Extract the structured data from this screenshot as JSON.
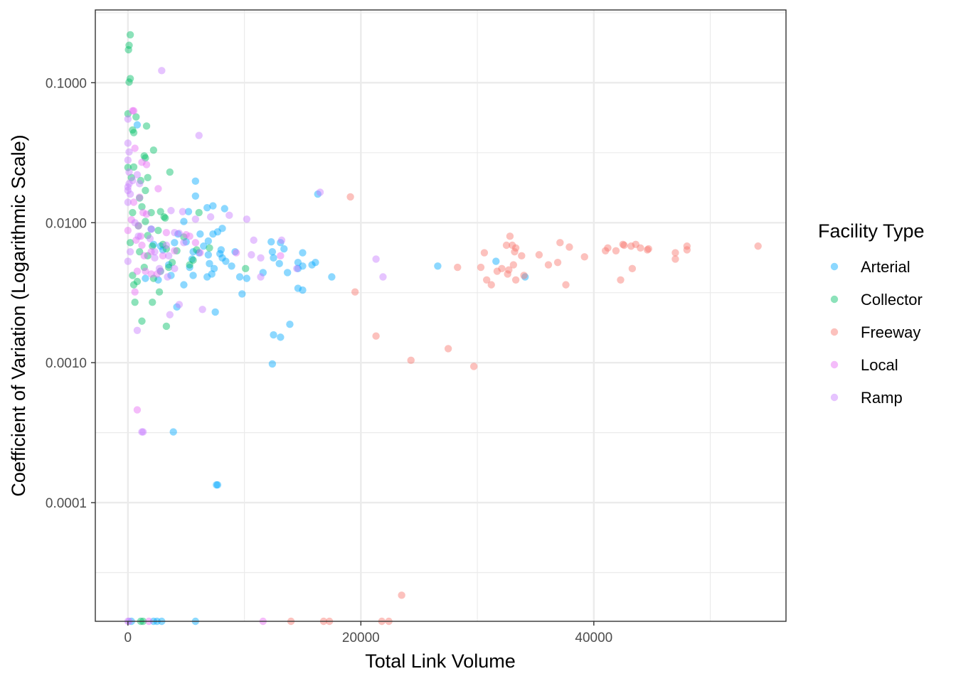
{
  "chart_data": {
    "type": "scatter",
    "xlabel": "Total Link Volume",
    "ylabel": "Coefficient of Variation (Logarithmic Scale)",
    "x_scale": "linear",
    "y_scale": "log10",
    "xlim": [
      -2800,
      56500
    ],
    "ylim": [
      1.42e-05,
      0.331
    ],
    "x_ticks": [
      0,
      20000,
      40000
    ],
    "x_tick_labels": [
      "0",
      "20000",
      "40000"
    ],
    "y_ticks": [
      0.0001,
      0.001,
      0.01,
      0.1
    ],
    "y_tick_labels": [
      "0.0001",
      "0.0010",
      "0.0100",
      "0.1000"
    ],
    "grid": true,
    "legend_title": "Facility Type",
    "legend_position": "right",
    "series": [
      {
        "name": "Arterial",
        "color": "#00A9FF",
        "points": [
          [
            800,
            0.05
          ],
          [
            5800,
            0.0198
          ],
          [
            5800,
            0.0155
          ],
          [
            6800,
            0.0128
          ],
          [
            7300,
            0.0132
          ],
          [
            7700,
            0.0086
          ],
          [
            8300,
            0.0126
          ],
          [
            8100,
            0.0091
          ],
          [
            4800,
            0.0102
          ],
          [
            5200,
            0.012
          ],
          [
            4300,
            0.0083
          ],
          [
            5000,
            0.0073
          ],
          [
            6200,
            0.0083
          ],
          [
            6900,
            0.0074
          ],
          [
            7900,
            0.006
          ],
          [
            7300,
            0.0083
          ],
          [
            6100,
            0.0061
          ],
          [
            5600,
            0.0062
          ],
          [
            5500,
            0.0055
          ],
          [
            6900,
            0.0059
          ],
          [
            7000,
            0.0051
          ],
          [
            7400,
            0.0047
          ],
          [
            7200,
            0.0043
          ],
          [
            6800,
            0.0041
          ],
          [
            5600,
            0.0042
          ],
          [
            5300,
            0.0048
          ],
          [
            4800,
            0.0036
          ],
          [
            4200,
            0.0025
          ],
          [
            3700,
            0.0042
          ],
          [
            3500,
            0.005
          ],
          [
            3000,
            0.0064
          ],
          [
            2800,
            0.0068
          ],
          [
            2600,
            0.0039
          ],
          [
            2200,
            0.007
          ],
          [
            8900,
            0.0049
          ],
          [
            8400,
            0.0053
          ],
          [
            9200,
            0.0062
          ],
          [
            9800,
            0.0031
          ],
          [
            10200,
            0.004
          ],
          [
            7500,
            0.0023
          ],
          [
            12300,
            0.0073
          ],
          [
            12500,
            0.0056
          ],
          [
            12400,
            0.0062
          ],
          [
            13100,
            0.0072
          ],
          [
            13000,
            0.0051
          ],
          [
            13400,
            0.0065
          ],
          [
            13700,
            0.0044
          ],
          [
            14600,
            0.0047
          ],
          [
            14600,
            0.0052
          ],
          [
            14600,
            0.0034
          ],
          [
            15000,
            0.0061
          ],
          [
            15000,
            0.0049
          ],
          [
            15000,
            0.0033
          ],
          [
            15800,
            0.005
          ],
          [
            16100,
            0.0052
          ],
          [
            16300,
            0.016
          ],
          [
            17500,
            0.0041
          ],
          [
            12500,
            0.00158
          ],
          [
            13100,
            0.00152
          ],
          [
            13900,
            0.00188
          ],
          [
            12400,
            0.00098
          ],
          [
            26600,
            0.0049
          ],
          [
            31600,
            0.0053
          ],
          [
            34100,
            0.0041
          ],
          [
            3900,
            0.00032
          ],
          [
            7600,
            0.000134
          ],
          [
            7700,
            0.000134
          ],
          [
            5800,
            1.42e-05
          ],
          [
            2200,
            1.42e-05
          ],
          [
            2500,
            1.42e-05
          ],
          [
            2900,
            1.42e-05
          ],
          [
            300,
            1.42e-05
          ],
          [
            8100,
            0.0056
          ],
          [
            8000,
            0.0064
          ],
          [
            4000,
            0.0072
          ],
          [
            2000,
            0.009
          ],
          [
            1500,
            0.004
          ],
          [
            6500,
            0.0068
          ],
          [
            9600,
            0.0041
          ],
          [
            11600,
            0.0044
          ]
        ]
      },
      {
        "name": "Collector",
        "color": "#00BE67",
        "points": [
          [
            200,
            0.22
          ],
          [
            100,
            0.185
          ],
          [
            50,
            0.172
          ],
          [
            200,
            0.107
          ],
          [
            100,
            0.101
          ],
          [
            0,
            0.06
          ],
          [
            400,
            0.046
          ],
          [
            500,
            0.044
          ],
          [
            700,
            0.057
          ],
          [
            1600,
            0.049
          ],
          [
            1400,
            0.03
          ],
          [
            1500,
            0.029
          ],
          [
            2200,
            0.033
          ],
          [
            3600,
            0.023
          ],
          [
            1100,
            0.02
          ],
          [
            1500,
            0.017
          ],
          [
            1700,
            0.021
          ],
          [
            2800,
            0.012
          ],
          [
            3100,
            0.011
          ],
          [
            3200,
            0.0108
          ],
          [
            2000,
            0.0118
          ],
          [
            1200,
            0.013
          ],
          [
            1000,
            0.015
          ],
          [
            400,
            0.0118
          ],
          [
            900,
            0.0095
          ],
          [
            1500,
            0.0102
          ],
          [
            1700,
            0.0081
          ],
          [
            2600,
            0.0088
          ],
          [
            2100,
            0.0068
          ],
          [
            3300,
            0.0065
          ],
          [
            4200,
            0.0063
          ],
          [
            3000,
            0.007
          ],
          [
            2800,
            0.0045
          ],
          [
            3500,
            0.0048
          ],
          [
            2200,
            0.004
          ],
          [
            1400,
            0.0048
          ],
          [
            800,
            0.0038
          ],
          [
            400,
            0.0042
          ],
          [
            500,
            0.0036
          ],
          [
            600,
            0.0027
          ],
          [
            2100,
            0.0027
          ],
          [
            3300,
            0.00182
          ],
          [
            1200,
            0.00198
          ],
          [
            5900,
            0.0064
          ],
          [
            6100,
            0.0118
          ],
          [
            7000,
            0.0066
          ],
          [
            10100,
            0.0047
          ],
          [
            5300,
            0.005
          ],
          [
            300,
            0.021
          ],
          [
            500,
            0.025
          ],
          [
            0,
            0.0248
          ],
          [
            1000,
            0.0062
          ],
          [
            4800,
            0.0079
          ],
          [
            5600,
            0.0054
          ],
          [
            2700,
            0.0032
          ],
          [
            1700,
            0.0058
          ],
          [
            200,
            0.0072
          ],
          [
            1100,
            1.42e-05
          ],
          [
            1300,
            1.42e-05
          ],
          [
            3800,
            0.0052
          ]
        ]
      },
      {
        "name": "Freeway",
        "color": "#F8766D",
        "points": [
          [
            19100,
            0.0153
          ],
          [
            33000,
            0.0069
          ],
          [
            32800,
            0.008
          ],
          [
            32500,
            0.0069
          ],
          [
            33200,
            0.0062
          ],
          [
            33300,
            0.0066
          ],
          [
            33800,
            0.0058
          ],
          [
            30600,
            0.0061
          ],
          [
            31700,
            0.0045
          ],
          [
            30300,
            0.0048
          ],
          [
            28300,
            0.0048
          ],
          [
            32600,
            0.0043
          ],
          [
            33100,
            0.005
          ],
          [
            33300,
            0.0039
          ],
          [
            34000,
            0.0042
          ],
          [
            35300,
            0.0059
          ],
          [
            36100,
            0.005
          ],
          [
            37100,
            0.0072
          ],
          [
            36900,
            0.0052
          ],
          [
            37600,
            0.0036
          ],
          [
            37900,
            0.0067
          ],
          [
            39200,
            0.0057
          ],
          [
            41000,
            0.0063
          ],
          [
            41200,
            0.0066
          ],
          [
            41900,
            0.0063
          ],
          [
            42300,
            0.0039
          ],
          [
            42500,
            0.007
          ],
          [
            43300,
            0.0047
          ],
          [
            44000,
            0.0066
          ],
          [
            44600,
            0.0064
          ],
          [
            47000,
            0.0061
          ],
          [
            47000,
            0.0055
          ],
          [
            48000,
            0.0068
          ],
          [
            48000,
            0.0064
          ],
          [
            54100,
            0.0068
          ],
          [
            24300,
            0.00104
          ],
          [
            30800,
            0.0039
          ],
          [
            31200,
            0.0036
          ],
          [
            32100,
            0.0047
          ],
          [
            32700,
            0.0046
          ],
          [
            42600,
            0.0069
          ],
          [
            43200,
            0.0068
          ],
          [
            43600,
            0.007
          ],
          [
            44700,
            0.0065
          ],
          [
            19500,
            0.0032
          ],
          [
            21300,
            0.00155
          ],
          [
            27500,
            0.00126
          ],
          [
            29700,
            0.00094
          ],
          [
            23500,
            2.18e-05
          ],
          [
            14000,
            1.42e-05
          ],
          [
            16800,
            1.42e-05
          ],
          [
            17300,
            1.42e-05
          ],
          [
            21800,
            1.42e-05
          ],
          [
            22400,
            1.42e-05
          ]
        ]
      },
      {
        "name": "Local",
        "color": "#E76BF3",
        "points": [
          [
            500,
            0.063
          ],
          [
            400,
            0.063
          ],
          [
            600,
            0.034
          ],
          [
            1200,
            0.027
          ],
          [
            1600,
            0.026
          ],
          [
            2600,
            0.0175
          ],
          [
            500,
            0.014
          ],
          [
            1000,
            0.0152
          ],
          [
            1300,
            0.0118
          ],
          [
            1600,
            0.0115
          ],
          [
            2000,
            0.009
          ],
          [
            900,
            0.0095
          ],
          [
            700,
            0.0075
          ],
          [
            1100,
            0.008
          ],
          [
            1400,
            0.0058
          ],
          [
            2000,
            0.0062
          ],
          [
            1500,
            0.0045
          ],
          [
            2000,
            0.0043
          ],
          [
            2500,
            0.0043
          ],
          [
            3000,
            0.0058
          ],
          [
            5300,
            0.008
          ],
          [
            5800,
            0.0072
          ],
          [
            6200,
            0.0061
          ],
          [
            5000,
            0.0082
          ],
          [
            9300,
            0.0061
          ],
          [
            11600,
            1.42e-05
          ],
          [
            800,
            0.00046
          ],
          [
            600,
            0.0032
          ],
          [
            13100,
            0.0058
          ],
          [
            0,
            0.0088
          ],
          [
            300,
            0.0105
          ],
          [
            1200,
            0.0069
          ],
          [
            3300,
            0.0085
          ],
          [
            4000,
            0.0063
          ],
          [
            800,
            0.0045
          ],
          [
            1800,
            1.42e-05
          ]
        ]
      },
      {
        "name": "Ramp",
        "color": "#C77CFF",
        "points": [
          [
            2900,
            0.122
          ],
          [
            0,
            0.055
          ],
          [
            6100,
            0.042
          ],
          [
            0,
            0.037
          ],
          [
            100,
            0.032
          ],
          [
            0,
            0.028
          ],
          [
            100,
            0.023
          ],
          [
            0,
            0.017
          ],
          [
            100,
            0.019
          ],
          [
            400,
            0.02
          ],
          [
            800,
            0.022
          ],
          [
            1000,
            0.019
          ],
          [
            0,
            0.014
          ],
          [
            200,
            0.016
          ],
          [
            3700,
            0.0122
          ],
          [
            4700,
            0.012
          ],
          [
            5800,
            0.0106
          ],
          [
            7100,
            0.011
          ],
          [
            8700,
            0.0113
          ],
          [
            10200,
            0.0106
          ],
          [
            16500,
            0.0165
          ],
          [
            10800,
            0.0075
          ],
          [
            13200,
            0.0075
          ],
          [
            10600,
            0.0059
          ],
          [
            11400,
            0.0056
          ],
          [
            11400,
            0.0041
          ],
          [
            14500,
            0.0047
          ],
          [
            21300,
            0.0055
          ],
          [
            21900,
            0.0041
          ],
          [
            4400,
            0.0084
          ],
          [
            4000,
            0.0085
          ],
          [
            4800,
            0.0072
          ],
          [
            3500,
            0.0058
          ],
          [
            3300,
            0.0069
          ],
          [
            2300,
            0.0062
          ],
          [
            1900,
            0.0077
          ],
          [
            2300,
            0.0056
          ],
          [
            2800,
            0.0045
          ],
          [
            3400,
            0.0041
          ],
          [
            4000,
            0.0047
          ],
          [
            4400,
            0.0026
          ],
          [
            3600,
            0.0022
          ],
          [
            6400,
            0.0024
          ],
          [
            800,
            0.0017
          ],
          [
            1300,
            0.00032
          ],
          [
            1200,
            0.00032
          ],
          [
            0,
            0.0053
          ],
          [
            200,
            0.0062
          ],
          [
            600,
            0.01
          ],
          [
            0,
            1.42e-05
          ],
          [
            100,
            1.42e-05
          ],
          [
            0,
            0.018
          ],
          [
            900,
            0.008
          ],
          [
            2700,
            0.0047
          ]
        ]
      }
    ]
  }
}
